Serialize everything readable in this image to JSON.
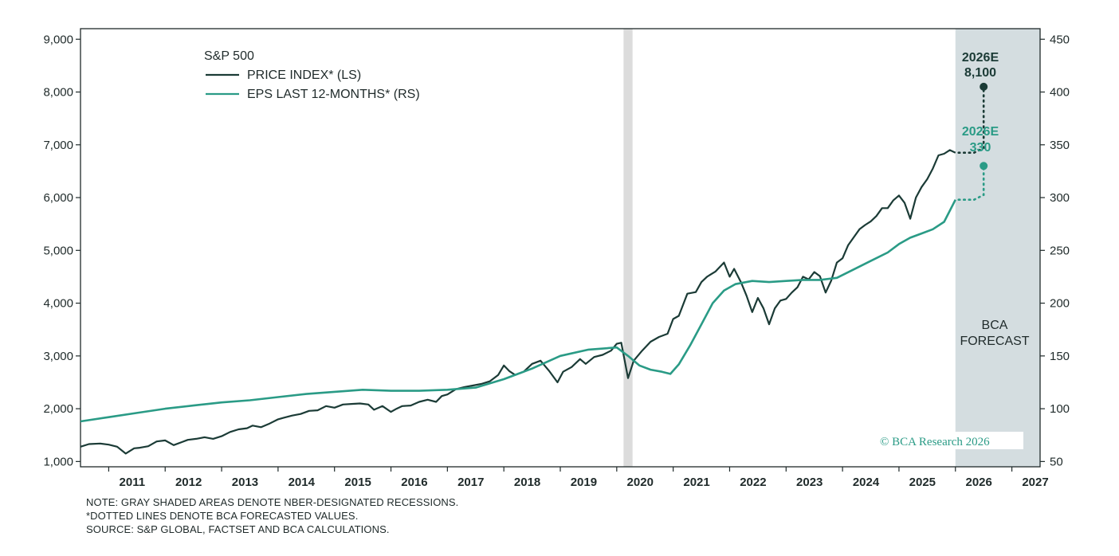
{
  "colors": {
    "price": "#1b3b36",
    "eps": "#2a9b86",
    "forecast_shade": "#d4dde0",
    "recession_shade": "#dcdcdc",
    "axis": "#1f2a2a"
  },
  "notes": {
    "line1": "NOTE: GRAY SHADED AREAS DENOTE NBER-DESIGNATED RECESSIONS.",
    "line2": "*DOTTED LINES DENOTE BCA FORECASTED VALUES.",
    "line3": "SOURCE: S&P GLOBAL, FACTSET AND BCA CALCULATIONS."
  },
  "copyright": "© BCA Research 2026",
  "chart_data": {
    "type": "line",
    "title": "S&P 500",
    "x_range": [
      2010.5,
      2027.5
    ],
    "x_ticks": [
      "2011",
      "2012",
      "2013",
      "2014",
      "2015",
      "2016",
      "2017",
      "2018",
      "2019",
      "2020",
      "2021",
      "2022",
      "2023",
      "2024",
      "2025",
      "2026",
      "2027"
    ],
    "y_left": {
      "label": "",
      "range": [
        900,
        9200
      ],
      "ticks": [
        "1,000",
        "2,000",
        "3,000",
        "4,000",
        "5,000",
        "6,000",
        "7,000",
        "8,000",
        "9,000"
      ]
    },
    "y_right": {
      "label": "",
      "range": [
        45,
        460
      ],
      "ticks": [
        "50",
        "100",
        "150",
        "200",
        "250",
        "300",
        "350",
        "400",
        "450"
      ]
    },
    "legend": {
      "position": "top-left",
      "heading": "S&P 500"
    },
    "recessions": [
      {
        "start": 2020.12,
        "end": 2020.28
      }
    ],
    "forecast_region": {
      "start": 2026.0,
      "end": 2027.6,
      "label_line1": "BCA",
      "label_line2": "FORECAST"
    },
    "series": [
      {
        "name": "PRICE INDEX* (LS)",
        "axis": "left",
        "x": [
          2010.5,
          2010.65,
          2010.85,
          2011.0,
          2011.15,
          2011.3,
          2011.45,
          2011.55,
          2011.7,
          2011.85,
          2012.0,
          2012.15,
          2012.3,
          2012.4,
          2012.55,
          2012.7,
          2012.85,
          2013.0,
          2013.15,
          2013.3,
          2013.45,
          2013.55,
          2013.7,
          2013.85,
          2014.0,
          2014.1,
          2014.25,
          2014.4,
          2014.55,
          2014.7,
          2014.85,
          2015.0,
          2015.15,
          2015.3,
          2015.45,
          2015.6,
          2015.7,
          2015.85,
          2016.0,
          2016.1,
          2016.2,
          2016.35,
          2016.5,
          2016.65,
          2016.8,
          2016.9,
          2017.0,
          2017.15,
          2017.3,
          2017.45,
          2017.6,
          2017.75,
          2017.9,
          2018.0,
          2018.1,
          2018.2,
          2018.35,
          2018.5,
          2018.65,
          2018.8,
          2018.95,
          2019.05,
          2019.2,
          2019.35,
          2019.45,
          2019.6,
          2019.75,
          2019.9,
          2020.0,
          2020.08,
          2020.2,
          2020.3,
          2020.45,
          2020.6,
          2020.75,
          2020.9,
          2021.0,
          2021.1,
          2021.25,
          2021.4,
          2021.5,
          2021.6,
          2021.75,
          2021.9,
          2022.0,
          2022.08,
          2022.2,
          2022.3,
          2022.4,
          2022.5,
          2022.6,
          2022.7,
          2022.8,
          2022.9,
          2023.0,
          2023.1,
          2023.2,
          2023.3,
          2023.4,
          2023.5,
          2023.6,
          2023.7,
          2023.8,
          2023.9,
          2024.0,
          2024.1,
          2024.2,
          2024.3,
          2024.4,
          2024.5,
          2024.6,
          2024.7,
          2024.8,
          2024.9,
          2025.0,
          2025.1,
          2025.2,
          2025.3,
          2025.4,
          2025.5,
          2025.6,
          2025.7,
          2025.8,
          2025.9,
          2026.0
        ],
        "y": [
          1280,
          1330,
          1340,
          1320,
          1280,
          1150,
          1250,
          1260,
          1290,
          1380,
          1400,
          1310,
          1370,
          1410,
          1430,
          1460,
          1430,
          1480,
          1560,
          1610,
          1630,
          1680,
          1650,
          1720,
          1800,
          1830,
          1870,
          1900,
          1960,
          1970,
          2050,
          2020,
          2080,
          2090,
          2100,
          2080,
          1980,
          2050,
          1940,
          2000,
          2050,
          2060,
          2130,
          2170,
          2130,
          2240,
          2270,
          2370,
          2410,
          2440,
          2470,
          2520,
          2640,
          2820,
          2710,
          2640,
          2700,
          2850,
          2910,
          2720,
          2500,
          2700,
          2790,
          2940,
          2850,
          2980,
          3020,
          3100,
          3230,
          3250,
          2580,
          2910,
          3100,
          3270,
          3360,
          3420,
          3700,
          3760,
          4180,
          4210,
          4400,
          4500,
          4600,
          4770,
          4500,
          4650,
          4400,
          4140,
          3830,
          4100,
          3900,
          3600,
          3900,
          4050,
          4080,
          4200,
          4300,
          4500,
          4450,
          4590,
          4510,
          4200,
          4430,
          4770,
          4850,
          5100,
          5250,
          5400,
          5480,
          5550,
          5650,
          5800,
          5800,
          5950,
          6040,
          5900,
          5600,
          6000,
          6200,
          6350,
          6550,
          6800,
          6830,
          6900,
          6850
        ]
      },
      {
        "name": "EPS LAST 12-MONTHS* (RS)",
        "axis": "right",
        "x": [
          2010.5,
          2011.0,
          2011.5,
          2012.0,
          2012.5,
          2013.0,
          2013.5,
          2014.0,
          2014.5,
          2015.0,
          2015.5,
          2016.0,
          2016.5,
          2017.0,
          2017.5,
          2018.0,
          2018.5,
          2019.0,
          2019.5,
          2020.0,
          2020.2,
          2020.4,
          2020.6,
          2020.8,
          2020.95,
          2021.1,
          2021.3,
          2021.5,
          2021.7,
          2021.9,
          2022.1,
          2022.4,
          2022.7,
          2023.0,
          2023.3,
          2023.6,
          2023.9,
          2024.2,
          2024.5,
          2024.8,
          2025.0,
          2025.2,
          2025.4,
          2025.6,
          2025.8,
          2026.0
        ],
        "y": [
          88,
          92,
          96,
          100,
          103,
          106,
          108,
          111,
          114,
          116,
          118,
          117,
          117,
          118,
          120,
          128,
          138,
          150,
          156,
          158,
          150,
          141,
          137,
          135,
          133,
          142,
          160,
          180,
          200,
          212,
          218,
          221,
          220,
          221,
          222,
          222,
          224,
          232,
          240,
          248,
          256,
          262,
          266,
          270,
          277,
          298
        ]
      }
    ],
    "forecasts": [
      {
        "series": "PRICE INDEX* (LS)",
        "label_year": "2026E",
        "label_value": "8,100",
        "value": 8100,
        "x": 2026.5
      },
      {
        "series": "EPS LAST 12-MONTHS* (RS)",
        "label_year": "2026E",
        "label_value": "330",
        "value": 330,
        "x": 2026.5
      }
    ]
  }
}
